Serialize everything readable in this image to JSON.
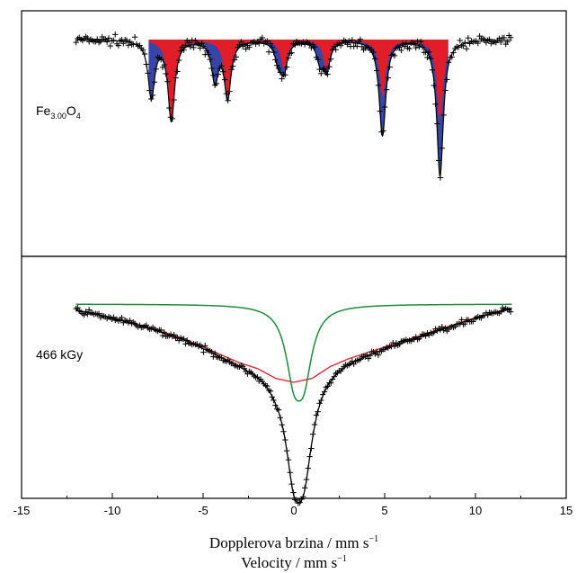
{
  "chart_data": {
    "type": "scatter",
    "x_axis": {
      "xlim": [
        -15,
        15
      ],
      "ticks": [
        -15,
        -10,
        -5,
        0,
        5,
        10,
        15
      ],
      "tick_labels": [
        "-15",
        "-10",
        "-5",
        "0",
        "5",
        "10",
        "15"
      ],
      "xlabel_line1": "Dopplerova brzina / mm s",
      "xlabel_line2": "Velocity / mm s",
      "xlabel_sup": "−1"
    },
    "grid": false,
    "panels": [
      {
        "label_main": "Fe",
        "label_sub1": "3.00",
        "label_mid": "O",
        "label_sub2": "4",
        "baseline": 1.0,
        "ylim": [
          0.7,
          1.05
        ],
        "data_range": [
          -12,
          12
        ],
        "sites": [
          {
            "color": "#3546a6",
            "lines": [
              {
                "center": -7.85,
                "depth": 0.1,
                "hwhm": 0.22
              },
              {
                "center": -4.35,
                "depth": 0.07,
                "hwhm": 0.22
              },
              {
                "center": -0.85,
                "depth": 0.035,
                "hwhm": 0.22
              },
              {
                "center": 1.45,
                "depth": 0.035,
                "hwhm": 0.22
              },
              {
                "center": 4.85,
                "depth": 0.07,
                "hwhm": 0.22
              },
              {
                "center": 8.05,
                "depth": 0.1,
                "hwhm": 0.22
              }
            ]
          },
          {
            "color": "#e11d2a",
            "lines": [
              {
                "center": -6.75,
                "depth": 0.14,
                "hwhm": 0.22
              },
              {
                "center": -3.65,
                "depth": 0.1,
                "hwhm": 0.22
              },
              {
                "center": -0.55,
                "depth": 0.05,
                "hwhm": 0.22
              },
              {
                "center": 1.8,
                "depth": 0.05,
                "hwhm": 0.22
              },
              {
                "center": 4.9,
                "depth": 0.1,
                "hwhm": 0.22
              },
              {
                "center": 8.05,
                "depth": 0.14,
                "hwhm": 0.22
              }
            ]
          }
        ],
        "series": [
          {
            "type": "scatter",
            "marker": "+"
          },
          {
            "type": "line",
            "color": "#000000",
            "role": "total-fit"
          }
        ]
      },
      {
        "label_main": "466 kGy",
        "ylim": [
          0.55,
          1.08
        ],
        "data_range": [
          -12,
          12
        ],
        "components": {
          "broad": {
            "color": "#e11d2a",
            "curve": [
              [
                -12,
                0.985
              ],
              [
                -10,
                0.965
              ],
              [
                -8,
                0.94
              ],
              [
                -6,
                0.91
              ],
              [
                -4,
                0.87
              ],
              [
                -3,
                0.85
              ],
              [
                -2,
                0.835
              ],
              [
                -1,
                0.81
              ],
              [
                0,
                0.8
              ],
              [
                1,
                0.81
              ],
              [
                2,
                0.84
              ],
              [
                3,
                0.86
              ],
              [
                4,
                0.875
              ],
              [
                6,
                0.905
              ],
              [
                8,
                0.935
              ],
              [
                10,
                0.965
              ],
              [
                12,
                0.99
              ]
            ]
          },
          "doublet": {
            "color": "#1e8c3a",
            "baseline": 1.0,
            "lines": [
              {
                "center": 0.0,
                "depth": 0.155,
                "hwhm": 0.55
              },
              {
                "center": 0.55,
                "depth": 0.155,
                "hwhm": 0.55
              }
            ]
          }
        },
        "series": [
          {
            "type": "scatter",
            "marker": "+"
          },
          {
            "type": "line",
            "color": "#000000",
            "role": "total-fit"
          }
        ]
      }
    ]
  }
}
